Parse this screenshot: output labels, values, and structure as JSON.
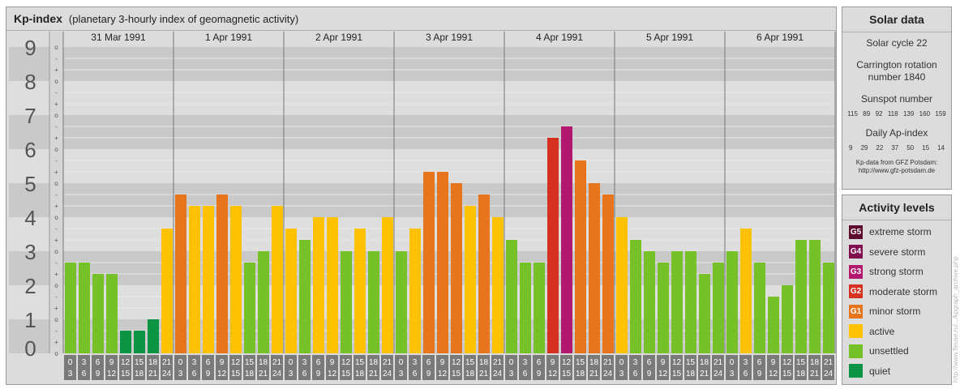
{
  "header": {
    "title": "Kp-index",
    "subtitle": "(planetary 3-hourly index of geomagnetic activity)"
  },
  "colors": {
    "quiet": "#0a9444",
    "unsettled": "#76c12a",
    "active": "#fcc203",
    "minor": "#e6751e",
    "moderate": "#d63020",
    "strong": "#b2186d",
    "severe": "#800d4e",
    "extreme": "#5c0a2e"
  },
  "chart_data": {
    "type": "bar",
    "title": "Kp-index",
    "subtitle": "(planetary 3-hourly index of geomagnetic activity)",
    "ylim": [
      0,
      9
    ],
    "y_ticks": [
      "0",
      "1",
      "2",
      "3",
      "4",
      "5",
      "6",
      "7",
      "8",
      "9"
    ],
    "sub_ticks": [
      "+",
      "o",
      "-"
    ],
    "days": [
      "31 Mar 1991",
      "1 Apr 1991",
      "2 Apr 1991",
      "3 Apr 1991",
      "4 Apr 1991",
      "5 Apr 1991",
      "6 Apr 1991"
    ],
    "intervals": [
      {
        "top": "0",
        "bottom": "3"
      },
      {
        "top": "3",
        "bottom": "6"
      },
      {
        "top": "6",
        "bottom": "9"
      },
      {
        "top": "9",
        "bottom": "12"
      },
      {
        "top": "12",
        "bottom": "15"
      },
      {
        "top": "15",
        "bottom": "18"
      },
      {
        "top": "18",
        "bottom": "21"
      },
      {
        "top": "21",
        "bottom": "24"
      }
    ],
    "values": [
      2.667,
      2.667,
      2.333,
      2.333,
      0.667,
      0.667,
      1.0,
      3.667,
      4.667,
      4.333,
      4.333,
      4.667,
      4.333,
      2.667,
      3.0,
      4.333,
      3.667,
      3.333,
      4.0,
      4.0,
      3.0,
      3.667,
      3.0,
      4.0,
      3.0,
      3.667,
      5.333,
      5.333,
      5.0,
      4.333,
      4.667,
      4.0,
      3.333,
      2.667,
      2.667,
      6.333,
      6.667,
      5.667,
      5.0,
      4.667,
      4.0,
      3.333,
      3.0,
      2.667,
      3.0,
      3.0,
      2.333,
      2.667,
      3.0,
      3.667,
      2.667,
      1.667,
      2.0,
      3.333,
      3.333,
      2.667
    ]
  },
  "solar": {
    "title": "Solar data",
    "cycle": "Solar cycle 22",
    "carrington_line1": "Carrington rotation",
    "carrington_line2": "number 1840",
    "sunspot_title": "Sunspot number",
    "sunspot_values": [
      "115",
      "89",
      "92",
      "118",
      "139",
      "160",
      "159"
    ],
    "ap_title": "Daily Ap-index",
    "ap_values": [
      "9",
      "29",
      "22",
      "37",
      "50",
      "15",
      "14"
    ],
    "source_line1": "Kp-data from GFZ Potsdam:",
    "source_line2": "http://www.gfz-potsdam.de"
  },
  "activity": {
    "title": "Activity levels",
    "levels": [
      {
        "code": "G5",
        "label": "extreme storm",
        "color": "#5c0a2e"
      },
      {
        "code": "G4",
        "label": "severe storm",
        "color": "#800d4e"
      },
      {
        "code": "G3",
        "label": "strong storm",
        "color": "#b2186d"
      },
      {
        "code": "G2",
        "label": "moderate storm",
        "color": "#d63020"
      },
      {
        "code": "G1",
        "label": "minor storm",
        "color": "#e6751e"
      },
      {
        "code": "",
        "label": "active",
        "color": "#fcc203"
      },
      {
        "code": "",
        "label": "unsettled",
        "color": "#76c12a"
      },
      {
        "code": "",
        "label": "quiet",
        "color": "#0a9444"
      }
    ]
  },
  "footer_url": "http://www.fleuse.ru/.../kpgraph_archive.php"
}
